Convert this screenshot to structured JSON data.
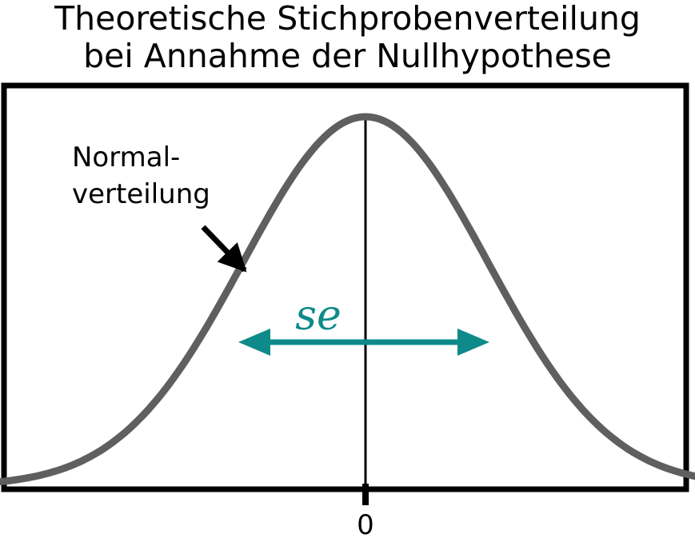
{
  "title_lines": [
    "Theoretische Stichprobenverteilung",
    "bei Annahme der Nullhypothese"
  ],
  "curve_label_lines": [
    "Normal-",
    "verteilung"
  ],
  "se_label": "se",
  "x_tick_label": "0",
  "colors": {
    "curve": "#5f5f5f",
    "se_arrow": "#0e8a8a",
    "frame": "#000000"
  },
  "chart_data": {
    "type": "line",
    "distribution": "normal",
    "mean": 0,
    "sd": 1,
    "x_range": [
      -3.7,
      3.7
    ],
    "annotation": "se"
  }
}
